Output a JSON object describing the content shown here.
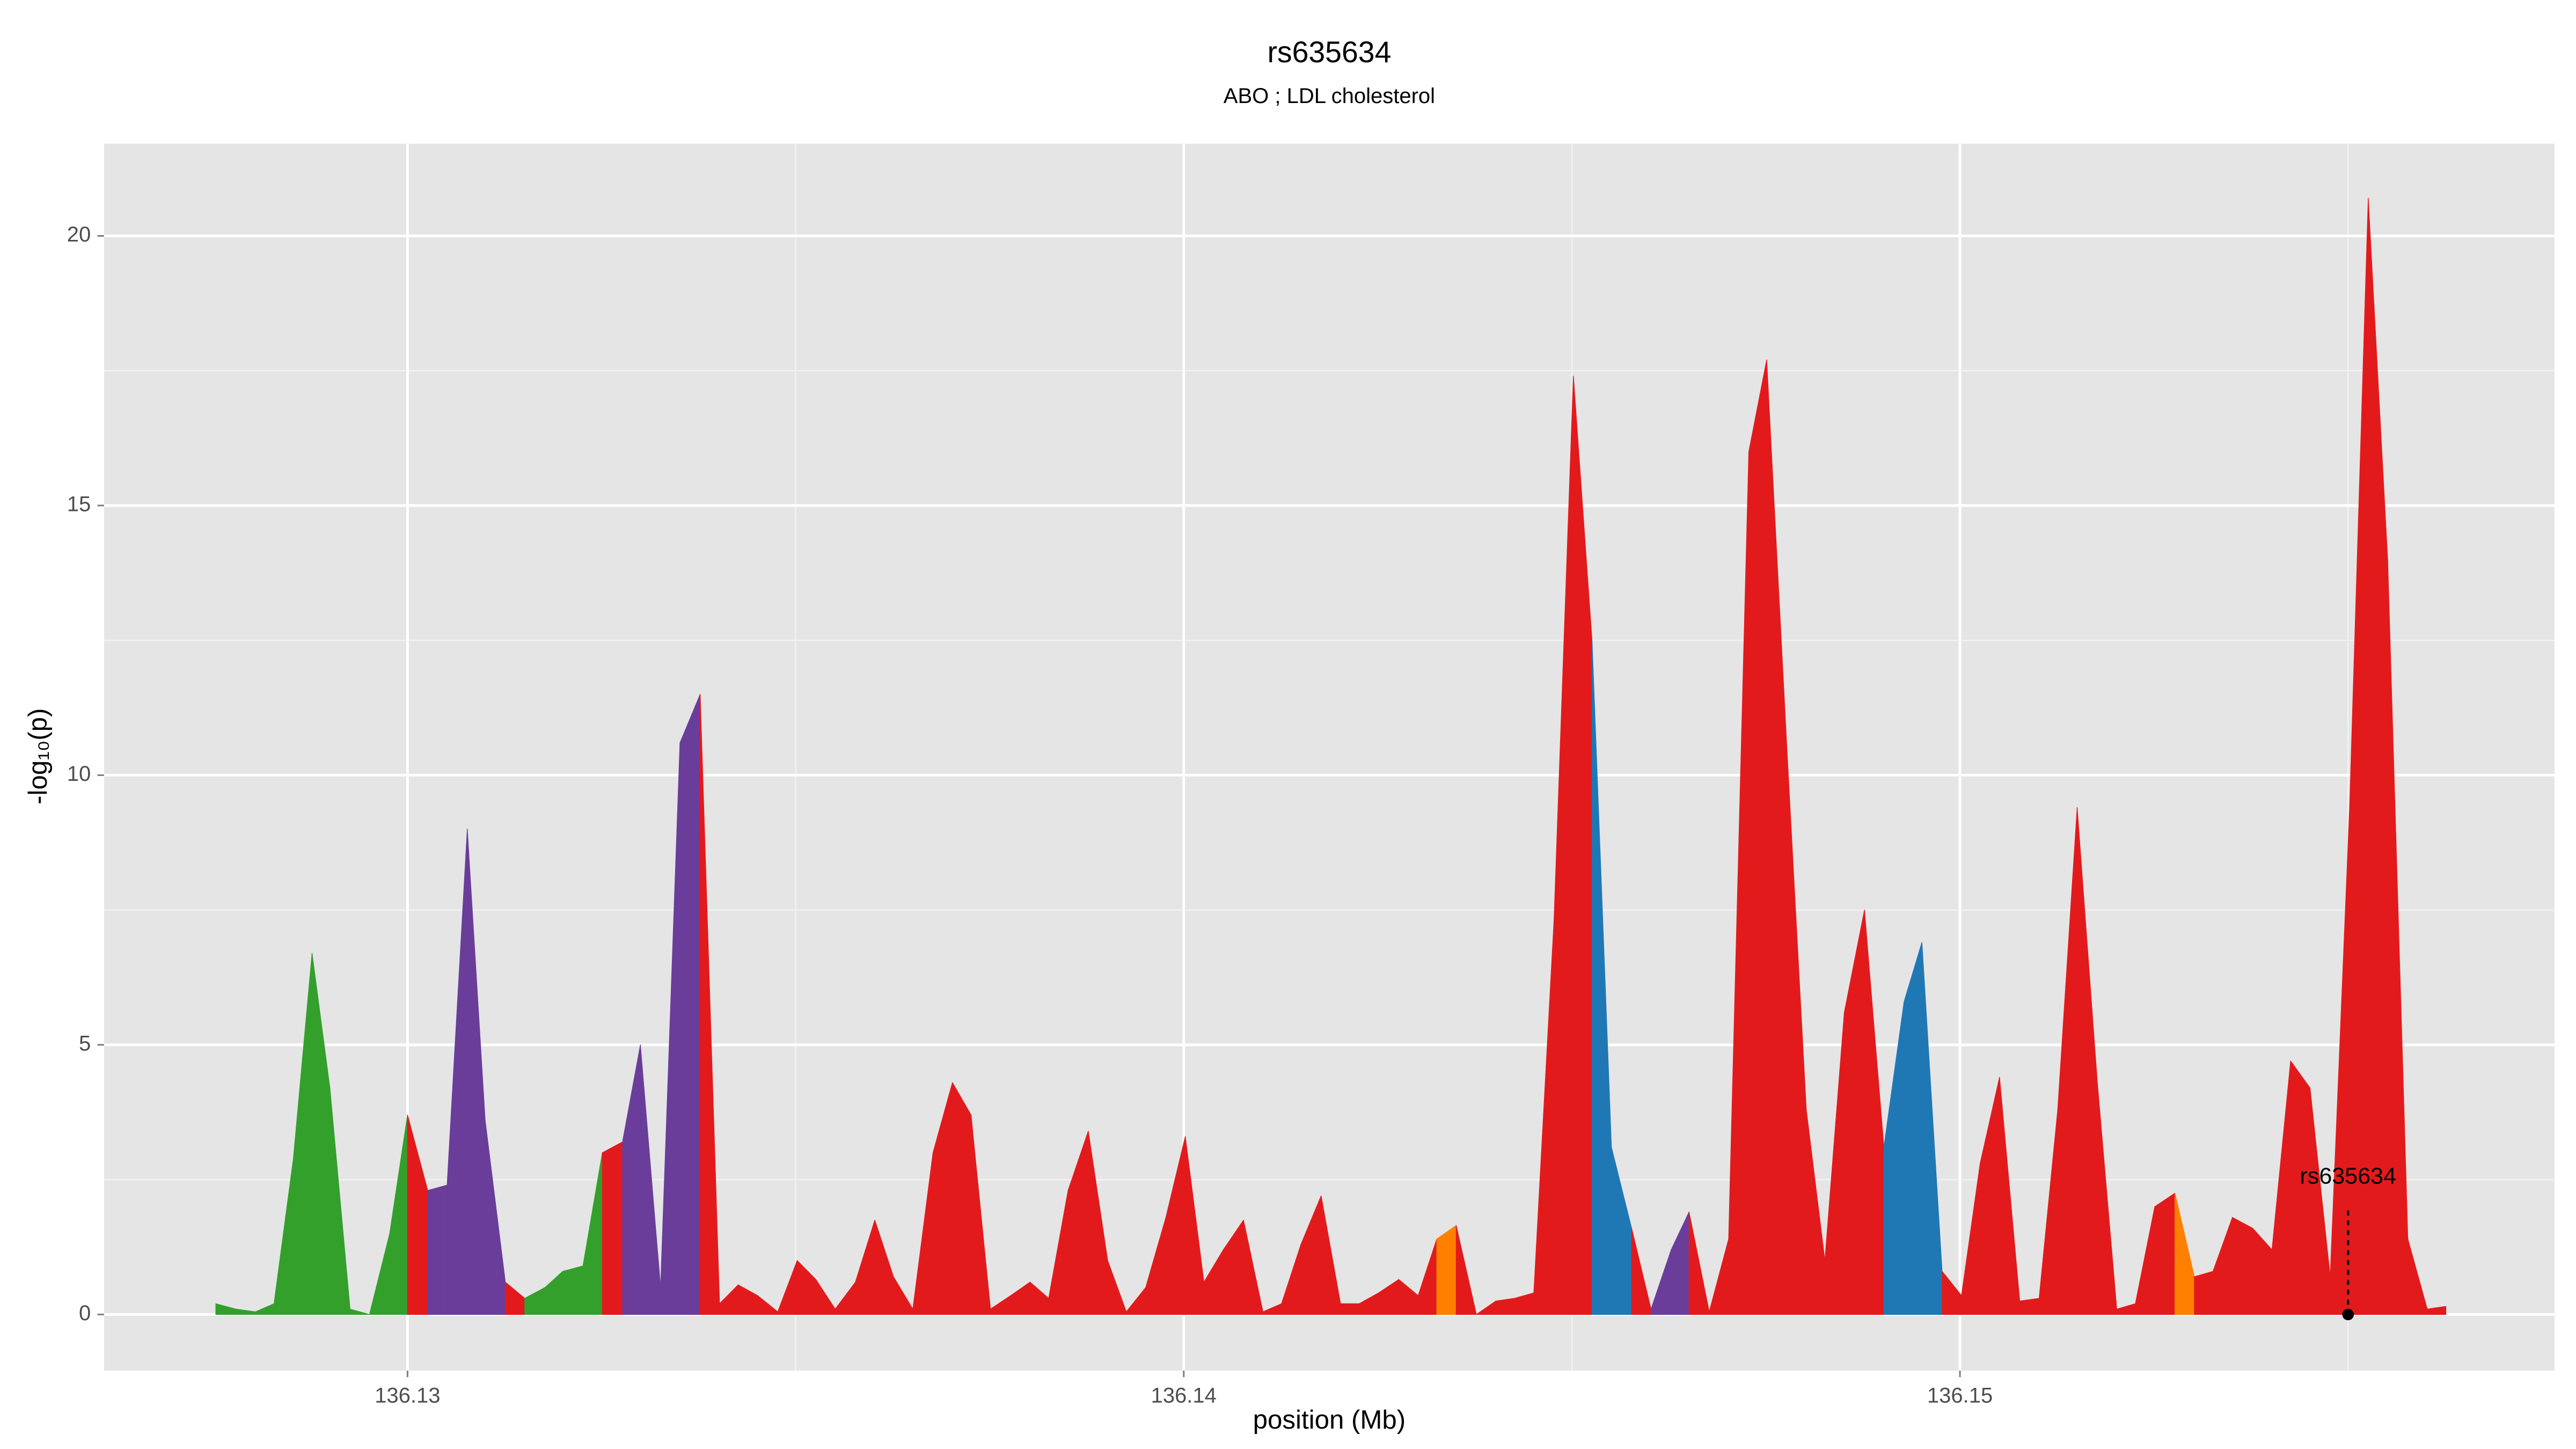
{
  "chart_data": {
    "type": "area",
    "title": "rs635634",
    "subtitle": "ABO ; LDL cholesterol",
    "x_label": "position (Mb)",
    "y_label": "-log₁₀(p)",
    "xlim": [
      136.12609,
      136.15766
    ],
    "ylim": [
      -1.04,
      21.71
    ],
    "xticks": [
      136.13,
      136.14,
      136.15
    ],
    "yticks": [
      0,
      5,
      10,
      15,
      20
    ],
    "grid": true,
    "background": "#e5e5e5",
    "x": [
      136.12753,
      136.12779,
      136.12804,
      136.12828,
      136.12853,
      136.12877,
      136.129,
      136.12926,
      136.12951,
      136.12977,
      136.13,
      136.13026,
      136.13051,
      136.13077,
      136.131,
      136.13126,
      136.13151,
      136.13177,
      136.132,
      136.13226,
      136.13251,
      136.13277,
      136.133,
      136.13326,
      136.13351,
      136.13377,
      136.13402,
      136.13426,
      136.13451,
      136.13477,
      136.13502,
      136.13526,
      136.13551,
      136.13577,
      136.13602,
      136.13626,
      136.13651,
      136.13677,
      136.13702,
      136.13726,
      136.13751,
      136.13777,
      136.13802,
      136.13826,
      136.13851,
      136.13877,
      136.13902,
      136.13926,
      136.13951,
      136.13977,
      136.14002,
      136.14026,
      136.14051,
      136.14077,
      136.14102,
      136.14126,
      136.14151,
      136.14177,
      136.14202,
      136.14226,
      136.14251,
      136.14277,
      136.14302,
      136.14326,
      136.14351,
      136.14377,
      136.14402,
      136.14426,
      136.14451,
      136.14477,
      136.14502,
      136.14526,
      136.14551,
      136.14577,
      136.14602,
      136.14628,
      136.14651,
      136.14677,
      136.14702,
      136.14728,
      136.14751,
      136.14777,
      136.14802,
      136.14826,
      136.14851,
      136.14877,
      136.14902,
      136.14928,
      136.14951,
      136.14977,
      136.15002,
      136.15026,
      136.15051,
      136.15077,
      136.15102,
      136.15126,
      136.15151,
      136.15177,
      136.15202,
      136.15226,
      136.15251,
      136.15277,
      136.15302,
      136.15326,
      136.15351,
      136.15377,
      136.15402,
      136.15426,
      136.15451,
      136.15477,
      136.15502,
      136.15526,
      136.15551,
      136.15577,
      136.15602,
      136.15626
    ],
    "values": [
      0.2,
      0.1,
      0.05,
      0.2,
      2.9,
      6.7,
      4.2,
      0.1,
      0.0,
      1.5,
      3.7,
      2.3,
      2.4,
      9.0,
      3.6,
      0.6,
      0.3,
      0.5,
      0.8,
      0.9,
      3.0,
      3.2,
      5.0,
      0.5,
      10.6,
      11.5,
      0.2,
      0.55,
      0.35,
      0.05,
      1.0,
      0.65,
      0.1,
      0.6,
      1.75,
      0.7,
      0.1,
      3.0,
      4.3,
      3.7,
      0.1,
      0.35,
      0.6,
      0.3,
      2.3,
      3.4,
      1.0,
      0.05,
      0.5,
      1.8,
      3.3,
      0.6,
      1.2,
      1.75,
      0.05,
      0.2,
      1.3,
      2.2,
      0.2,
      0.2,
      0.4,
      0.65,
      0.35,
      1.4,
      1.65,
      0.0,
      0.25,
      0.3,
      0.4,
      7.3,
      17.4,
      12.5,
      3.1,
      1.6,
      0.1,
      1.2,
      1.9,
      0.05,
      1.4,
      16.0,
      17.7,
      10.5,
      3.8,
      1.0,
      5.6,
      7.5,
      3.1,
      5.8,
      6.9,
      0.8,
      0.35,
      2.8,
      4.4,
      0.25,
      0.3,
      3.8,
      9.4,
      4.3,
      0.1,
      0.2,
      2.0,
      2.25,
      0.7,
      0.8,
      1.8,
      1.6,
      1.2,
      4.7,
      4.2,
      0.7,
      9.4,
      20.7,
      14.0,
      1.4,
      0.1,
      0.15
    ],
    "colors": [
      "#33a02c",
      "#33a02c",
      "#33a02c",
      "#33a02c",
      "#33a02c",
      "#33a02c",
      "#33a02c",
      "#33a02c",
      "#33a02c",
      "#33a02c",
      "#33a02c",
      "#e31a1c",
      "#6a3d9a",
      "#6a3d9a",
      "#6a3d9a",
      "#6a3d9a",
      "#e31a1c",
      "#33a02c",
      "#33a02c",
      "#33a02c",
      "#33a02c",
      "#e31a1c",
      "#6a3d9a",
      "#6a3d9a",
      "#6a3d9a",
      "#6a3d9a",
      "#e31a1c",
      "#e31a1c",
      "#e31a1c",
      "#e31a1c",
      "#e31a1c",
      "#e31a1c",
      "#e31a1c",
      "#e31a1c",
      "#e31a1c",
      "#e31a1c",
      "#e31a1c",
      "#e31a1c",
      "#e31a1c",
      "#e31a1c",
      "#e31a1c",
      "#e31a1c",
      "#e31a1c",
      "#e31a1c",
      "#e31a1c",
      "#e31a1c",
      "#e31a1c",
      "#e31a1c",
      "#e31a1c",
      "#e31a1c",
      "#e31a1c",
      "#e31a1c",
      "#e31a1c",
      "#e31a1c",
      "#e31a1c",
      "#e31a1c",
      "#e31a1c",
      "#e31a1c",
      "#e31a1c",
      "#e31a1c",
      "#e31a1c",
      "#e31a1c",
      "#e31a1c",
      "#e31a1c",
      "#ff7f00",
      "#e31a1c",
      "#e31a1c",
      "#e31a1c",
      "#e31a1c",
      "#e31a1c",
      "#e31a1c",
      "#e31a1c",
      "#1f78b4",
      "#1f78b4",
      "#e31a1c",
      "#6a3d9a",
      "#6a3d9a",
      "#e31a1c",
      "#e31a1c",
      "#e31a1c",
      "#e31a1c",
      "#e31a1c",
      "#e31a1c",
      "#e31a1c",
      "#e31a1c",
      "#e31a1c",
      "#e31a1c",
      "#1f78b4",
      "#1f78b4",
      "#1f78b4",
      "#e31a1c",
      "#e31a1c",
      "#e31a1c",
      "#e31a1c",
      "#e31a1c",
      "#e31a1c",
      "#e31a1c",
      "#e31a1c",
      "#e31a1c",
      "#e31a1c",
      "#e31a1c",
      "#e31a1c",
      "#ff7f00",
      "#e31a1c",
      "#e31a1c",
      "#e31a1c",
      "#e31a1c",
      "#e31a1c",
      "#e31a1c",
      "#e31a1c",
      "#e31a1c",
      "#e31a1c",
      "#e31a1c",
      "#e31a1c",
      "#e31a1c",
      "#e31a1c"
    ],
    "annotation": {
      "text": "rs635634",
      "x": 136.155,
      "y": 0
    }
  }
}
